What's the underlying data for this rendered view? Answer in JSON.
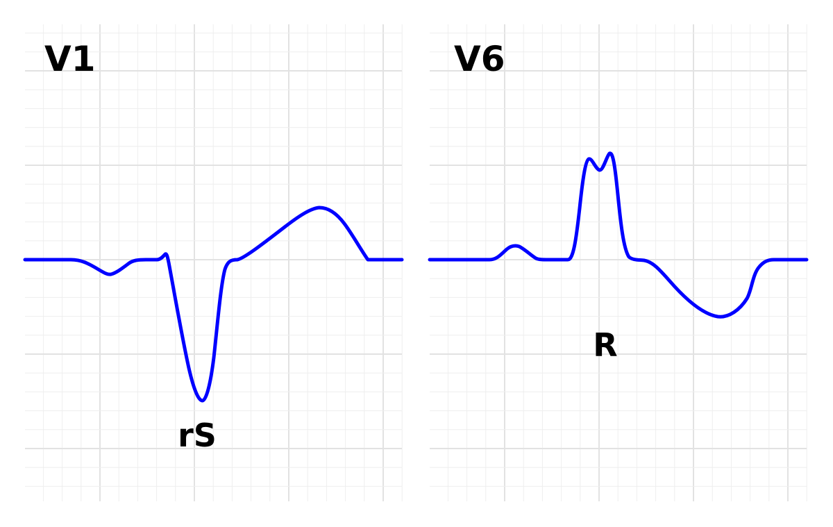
{
  "colors": {
    "trace": "#0000ff",
    "grid_minor": "#eeeeee",
    "grid_major": "#e2e2e2",
    "background": "#ffffff"
  },
  "leads": [
    {
      "name": "V1",
      "complex": "rS"
    },
    {
      "name": "V6",
      "complex": "R"
    }
  ]
}
